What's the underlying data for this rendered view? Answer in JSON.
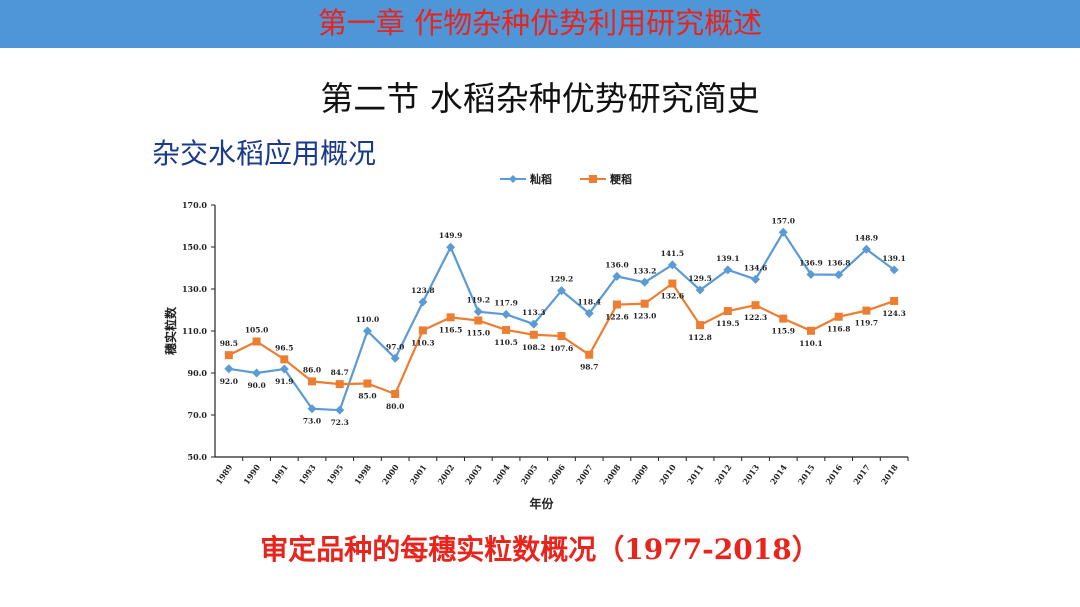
{
  "header": {
    "title": "第一章  作物杂种优势利用研究概述"
  },
  "section": {
    "title": "第二节 水稻杂种优势研究简史"
  },
  "subsection": {
    "title": "杂交水稻应用概况"
  },
  "caption": {
    "text": "审定品种的每穗实粒数概况（1977-2018）"
  },
  "colors": {
    "accent_bar": "#4f96d8",
    "title_red": "#e8241c",
    "indica": "#5b9bd5",
    "japonica": "#ed7d31"
  },
  "chart_data": {
    "type": "line",
    "xlabel": "年份",
    "ylabel": "穗实粒数",
    "ylim": [
      50,
      170
    ],
    "yticks": [
      "50.0",
      "70.0",
      "90.0",
      "110.0",
      "130.0",
      "150.0",
      "170.0"
    ],
    "legend_position": "top",
    "grid": false,
    "categories": [
      "1989",
      "1990",
      "1991",
      "1993",
      "1995",
      "1998",
      "2000",
      "2001",
      "2002",
      "2003",
      "2004",
      "2005",
      "2006",
      "2007",
      "2008",
      "2009",
      "2010",
      "2011",
      "2012",
      "2013",
      "2014",
      "2015",
      "2016",
      "2017",
      "2018"
    ],
    "series": [
      {
        "name": "籼稻",
        "marker": "diamond",
        "values": [
          92.0,
          90.0,
          91.9,
          73.0,
          72.3,
          110.0,
          97.0,
          123.8,
          149.9,
          119.2,
          117.9,
          113.3,
          129.2,
          118.4,
          136.0,
          133.2,
          141.5,
          129.5,
          139.1,
          134.6,
          157.0,
          136.9,
          136.8,
          148.9,
          139.1
        ]
      },
      {
        "name": "粳稻",
        "marker": "square",
        "values": [
          98.5,
          105.0,
          96.5,
          86.0,
          84.7,
          85.0,
          80.0,
          110.3,
          116.5,
          115.0,
          110.5,
          108.2,
          107.6,
          98.7,
          122.6,
          123.0,
          132.6,
          112.8,
          119.5,
          122.3,
          115.9,
          110.1,
          116.8,
          119.7,
          124.3
        ]
      }
    ]
  }
}
